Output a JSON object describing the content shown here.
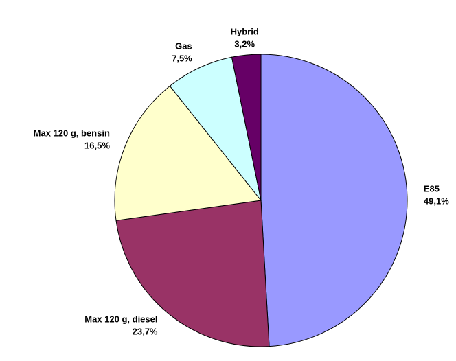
{
  "chart_data": {
    "type": "pie",
    "categories": [
      "E85",
      "Max 120 g, diesel",
      "Max 120 g, bensin",
      "Gas",
      "Hybrid"
    ],
    "values": [
      49.1,
      23.7,
      16.5,
      7.5,
      3.2
    ],
    "value_labels": [
      "49,1%",
      "23,7%",
      "16,5%",
      "7,5%",
      "3,2%"
    ],
    "colors": [
      "#9999ff",
      "#993366",
      "#ffffcc",
      "#ccffff",
      "#660066"
    ]
  }
}
